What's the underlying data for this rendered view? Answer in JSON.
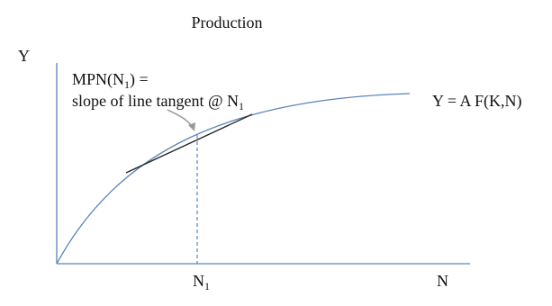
{
  "title": "Production",
  "axes": {
    "y": "Y",
    "x": "N"
  },
  "curve_label": "Y = A F(K,N)",
  "annotation": {
    "line1": [
      "MPN(N",
      "1",
      ") ="
    ],
    "line2": [
      "slope of line tangent @ N",
      "1"
    ]
  },
  "x_marker": [
    "N",
    "1"
  ]
}
